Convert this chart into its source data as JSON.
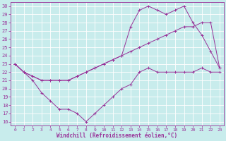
{
  "xlabel": "Windchill (Refroidissement éolien,°C)",
  "bg_color": "#c8ecec",
  "grid_color": "#b0d8d8",
  "line_color": "#993399",
  "spine_color": "#993399",
  "xlim": [
    -0.5,
    23.5
  ],
  "ylim": [
    15.5,
    30.5
  ],
  "xticks": [
    0,
    1,
    2,
    3,
    4,
    5,
    6,
    7,
    8,
    9,
    10,
    11,
    12,
    13,
    14,
    15,
    16,
    17,
    18,
    19,
    20,
    21,
    22,
    23
  ],
  "yticks": [
    16,
    17,
    18,
    19,
    20,
    21,
    22,
    23,
    24,
    25,
    26,
    27,
    28,
    29,
    30
  ],
  "curve1_x": [
    0,
    1,
    2,
    3,
    4,
    5,
    6,
    7,
    8,
    9,
    10,
    11,
    12,
    13,
    14,
    15,
    16,
    17,
    18,
    19,
    20,
    21,
    22,
    23
  ],
  "curve1_y": [
    23,
    22,
    21,
    19.5,
    18.5,
    17.5,
    17.5,
    17,
    16,
    17,
    18,
    19,
    20,
    20.5,
    22,
    22.5,
    22,
    22,
    22,
    22,
    22,
    22.5,
    22,
    22
  ],
  "curve2_x": [
    0,
    1,
    2,
    3,
    4,
    5,
    6,
    7,
    8,
    9,
    10,
    11,
    12,
    13,
    14,
    15,
    16,
    17,
    18,
    19,
    20,
    21,
    22,
    23
  ],
  "curve2_y": [
    23,
    22,
    21.5,
    21,
    21,
    21,
    21,
    21.5,
    22,
    22.5,
    23,
    23.5,
    24,
    24.5,
    25,
    25.5,
    26,
    26.5,
    27,
    27.5,
    27.5,
    28,
    28,
    22.5
  ],
  "curve3_x": [
    0,
    1,
    2,
    3,
    4,
    5,
    6,
    7,
    8,
    9,
    10,
    11,
    12,
    13,
    14,
    15,
    16,
    17,
    18,
    19,
    20,
    21,
    22,
    23
  ],
  "curve3_y": [
    23,
    22,
    21.5,
    21,
    21,
    21,
    21,
    21.5,
    22,
    22.5,
    23,
    23.5,
    24,
    27.5,
    29.5,
    30,
    29.5,
    29,
    29.5,
    30,
    28,
    26.5,
    24.5,
    22.5
  ]
}
